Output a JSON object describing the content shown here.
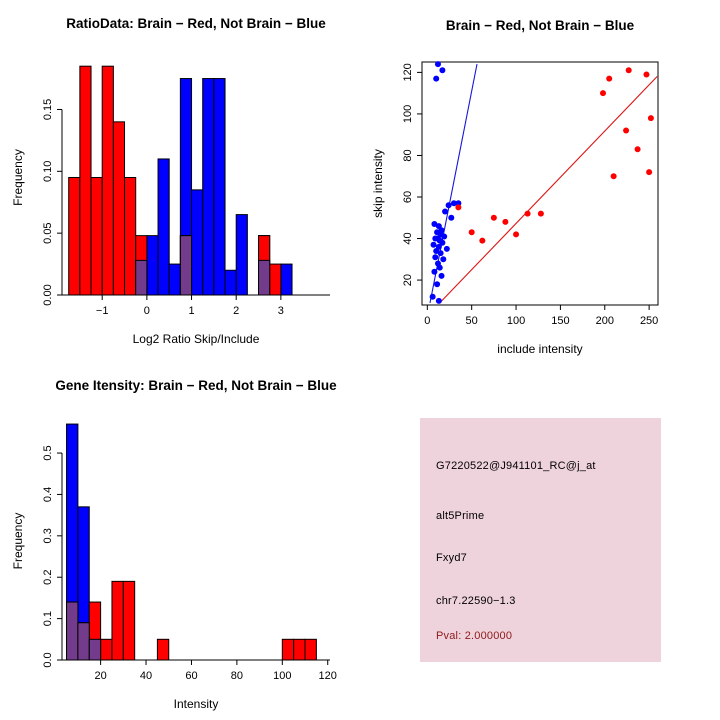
{
  "window": {
    "background": "#FFFFFF"
  },
  "colors": {
    "brain": "#FF0000",
    "not_brain": "#0000FF",
    "overlap": "#733B8B",
    "axis": "#000000",
    "info_box_bg": "#EFD3DC",
    "pval_text": "#8B1A1A"
  },
  "chart_data": [
    {
      "id": "ratio-hist",
      "type": "bar",
      "subtype": "overlaid-histogram",
      "title": "RatioData: Brain − Red, Not Brain − Blue",
      "xlabel": "Log2 Ratio Skip/Include",
      "ylabel": "Frequency",
      "xlim": [
        -1.9,
        4.1
      ],
      "ylim": [
        0,
        0.19
      ],
      "xticks": [
        -1,
        0,
        1,
        2,
        3
      ],
      "xtick_labels": [
        "−1",
        "0",
        "1",
        "2",
        "3"
      ],
      "yticks": [
        0,
        0.05,
        0.1,
        0.15
      ],
      "ytick_labels": [
        "0.00",
        "0.05",
        "0.10",
        "0.15"
      ],
      "bin_width": 0.25,
      "grid": false,
      "legend": "none",
      "plot": {
        "l": 62,
        "r": 330,
        "t": 60,
        "b": 295
      },
      "series": [
        {
          "name": "Not Brain",
          "color": "#0000FF",
          "bins": [
            [
              -0.25,
              0.028
            ],
            [
              0,
              0.048
            ],
            [
              0.25,
              0.11
            ],
            [
              0.5,
              0.025
            ],
            [
              0.75,
              0.175
            ],
            [
              1,
              0.085
            ],
            [
              1.25,
              0.175
            ],
            [
              1.5,
              0.175
            ],
            [
              1.75,
              0.02
            ],
            [
              2,
              0.065
            ],
            [
              2.5,
              0.048
            ],
            [
              3,
              0.025
            ]
          ]
        },
        {
          "name": "Brain",
          "color": "#FF0000",
          "bins": [
            [
              -1.75,
              0.095
            ],
            [
              -1.5,
              0.185
            ],
            [
              -1.25,
              0.095
            ],
            [
              -1,
              0.185
            ],
            [
              -0.75,
              0.14
            ],
            [
              -0.5,
              0.095
            ],
            [
              -0.25,
              0.048
            ],
            [
              0.75,
              0.048
            ],
            [
              2.5,
              0.048
            ],
            [
              2.75,
              0.025
            ]
          ]
        },
        {
          "name": "Overlap",
          "color": "#733B8B",
          "bins": [
            [
              -0.25,
              0.028
            ],
            [
              0.75,
              0.048
            ],
            [
              2.5,
              0.028
            ]
          ]
        }
      ]
    },
    {
      "id": "intensity-scatter",
      "type": "scatter",
      "title": "Brain − Red, Not Brain − Blue",
      "xlabel": "include intensity",
      "ylabel": "skip intensity",
      "xlim": [
        -6,
        260
      ],
      "ylim": [
        8,
        125
      ],
      "xticks": [
        0,
        50,
        100,
        150,
        200,
        250
      ],
      "xtick_labels": [
        "0",
        "50",
        "100",
        "150",
        "200",
        "250"
      ],
      "yticks": [
        20,
        40,
        60,
        80,
        100,
        120
      ],
      "ytick_labels": [
        "20",
        "40",
        "60",
        "80",
        "100",
        "120"
      ],
      "grid": false,
      "legend": "none",
      "box": true,
      "point_radius": 3,
      "plot": {
        "l": 62,
        "r": 298,
        "t": 62,
        "b": 305
      },
      "series": [
        {
          "name": "Not Brain",
          "color": "#0000FF",
          "points": [
            [
              12,
              124
            ],
            [
              17,
              121
            ],
            [
              10,
              117
            ],
            [
              30,
              57
            ],
            [
              35,
              57
            ],
            [
              24,
              56
            ],
            [
              20,
              53
            ],
            [
              27,
              50
            ],
            [
              8,
              47
            ],
            [
              13,
              46
            ],
            [
              16,
              44
            ],
            [
              11,
              43
            ],
            [
              15,
              42
            ],
            [
              19,
              41
            ],
            [
              9,
              40
            ],
            [
              12,
              40
            ],
            [
              14,
              39
            ],
            [
              17,
              38
            ],
            [
              7,
              37
            ],
            [
              13,
              36
            ],
            [
              22,
              35
            ],
            [
              10,
              34
            ],
            [
              15,
              33
            ],
            [
              9,
              31
            ],
            [
              18,
              30
            ],
            [
              12,
              28
            ],
            [
              14,
              26
            ],
            [
              8,
              24
            ],
            [
              16,
              22
            ],
            [
              11,
              18
            ],
            [
              6,
              12
            ],
            [
              13,
              10
            ]
          ]
        },
        {
          "name": "Brain",
          "color": "#FF0000",
          "points": [
            [
              35,
              55
            ],
            [
              50,
              43
            ],
            [
              62,
              39
            ],
            [
              75,
              50
            ],
            [
              88,
              48
            ],
            [
              100,
              42
            ],
            [
              113,
              52
            ],
            [
              128,
              52
            ],
            [
              198,
              110
            ],
            [
              205,
              117
            ],
            [
              227,
              121
            ],
            [
              247,
              119
            ],
            [
              252,
              98
            ],
            [
              224,
              92
            ],
            [
              237,
              83
            ],
            [
              210,
              70
            ],
            [
              250,
              72
            ]
          ]
        }
      ],
      "lines": [
        {
          "name": "not-brain-fit-line",
          "color": "#1515DD",
          "x1": 3,
          "y1": 9,
          "x2": 56,
          "y2": 124
        },
        {
          "name": "brain-fit-line",
          "color": "#DD1515",
          "x1": 14,
          "y1": 9,
          "x2": 259,
          "y2": 118
        }
      ]
    },
    {
      "id": "gene-hist",
      "type": "bar",
      "subtype": "overlaid-histogram",
      "title": "Gene Itensity: Brain − Red, Not Brain − Blue",
      "xlabel": "Intensity",
      "ylabel": "Frequency",
      "xlim": [
        3,
        121
      ],
      "ylim": [
        0,
        0.575
      ],
      "xticks": [
        20,
        40,
        60,
        80,
        100,
        120
      ],
      "xtick_labels": [
        "20",
        "40",
        "60",
        "80",
        "100",
        "120"
      ],
      "yticks": [
        0,
        0.1,
        0.2,
        0.3,
        0.4,
        0.5
      ],
      "ytick_labels": [
        "0.0",
        "0.1",
        "0.2",
        "0.3",
        "0.4",
        "0.5"
      ],
      "bin_width": 5,
      "grid": false,
      "legend": "none",
      "plot": {
        "l": 62,
        "r": 330,
        "t": 62,
        "b": 300
      },
      "series": [
        {
          "name": "Not Brain",
          "color": "#0000FF",
          "bins": [
            [
              5,
              0.57
            ],
            [
              10,
              0.37
            ],
            [
              15,
              0.05
            ]
          ]
        },
        {
          "name": "Brain",
          "color": "#FF0000",
          "bins": [
            [
              5,
              0.14
            ],
            [
              10,
              0.09
            ],
            [
              15,
              0.14
            ],
            [
              20,
              0.05
            ],
            [
              25,
              0.19
            ],
            [
              30,
              0.19
            ],
            [
              45,
              0.05
            ],
            [
              100,
              0.05
            ],
            [
              105,
              0.05
            ],
            [
              110,
              0.05
            ]
          ]
        },
        {
          "name": "Overlap",
          "color": "#733B8B",
          "bins": [
            [
              5,
              0.14
            ],
            [
              10,
              0.09
            ],
            [
              15,
              0.05
            ]
          ]
        }
      ]
    }
  ],
  "info_box": {
    "lines": [
      {
        "name": "probe-id",
        "text": "G7220522@J941101_RC@j_at",
        "color": "#000000"
      },
      {
        "name": "splice-event-type",
        "text": "alt5Prime",
        "color": "#000000"
      },
      {
        "name": "gene-symbol",
        "text": "Fxyd7",
        "color": "#000000"
      },
      {
        "name": "genomic-location",
        "text": "chr7.22590−1.3",
        "color": "#000000"
      },
      {
        "name": "pvalue",
        "text": "Pval: 2.000000",
        "color": "#8B1A1A"
      }
    ]
  }
}
